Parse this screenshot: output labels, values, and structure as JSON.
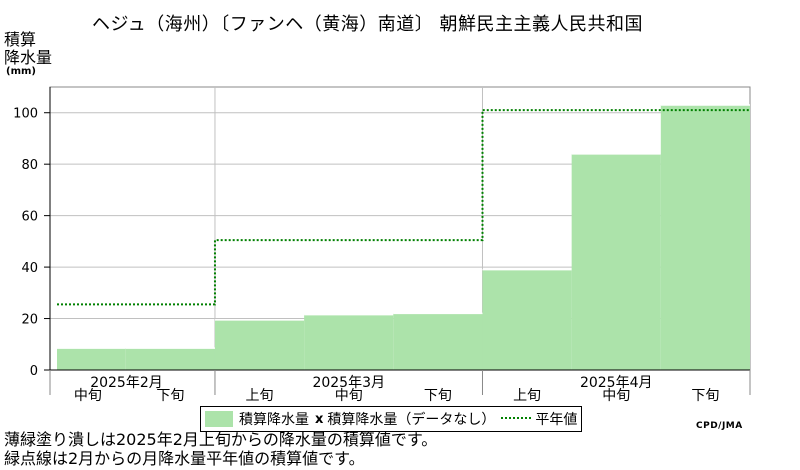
{
  "header": {
    "title": "ヘジュ（海州）〔ファンヘ（黄海）南道〕 朝鮮民主主義人民共和国"
  },
  "yaxis_label": {
    "line1": "積算",
    "line2": "降水量",
    "unit": "(mm)"
  },
  "legend": {
    "bar_label": "積算降水量",
    "missing_marker": "x",
    "missing_label": "積算降水量（データなし）",
    "normal_label": "平年値"
  },
  "footer": {
    "credit": "CPD/JMA",
    "note1": "薄緑塗り潰しは2025年2月上旬からの降水量の積算値です。",
    "note2": "緑点線は2月からの月降水量平年値の積算値です。"
  },
  "colors": {
    "bar": "#ace3aa",
    "normal_line": "#008000",
    "grid": "#c0c0c0"
  },
  "chart_data": {
    "type": "bar",
    "title": "ヘジュ（海州）〔ファンヘ（黄海）南道〕 朝鮮民主主義人民共和国",
    "ylabel": "積算降水量 (mm)",
    "ylim": [
      0,
      110
    ],
    "yticks": [
      0,
      20,
      40,
      60,
      80,
      100
    ],
    "grid": true,
    "legend_position": "bottom",
    "categories": [
      "中旬",
      "下旬",
      "上旬",
      "中旬",
      "下旬",
      "上旬",
      "中旬",
      "下旬"
    ],
    "months": [
      {
        "label": "2025年2月",
        "span": 2
      },
      {
        "label": "2025年3月",
        "span": 3
      },
      {
        "label": "2025年4月",
        "span": 3
      }
    ],
    "series": [
      {
        "name": "積算降水量",
        "values": [
          8.5,
          8.5,
          19.5,
          21.5,
          22,
          39,
          84,
          103
        ]
      },
      {
        "name": "平年値",
        "values": [
          25.5,
          25.5,
          50.5,
          50.5,
          50.5,
          101,
          101,
          101
        ]
      }
    ]
  }
}
